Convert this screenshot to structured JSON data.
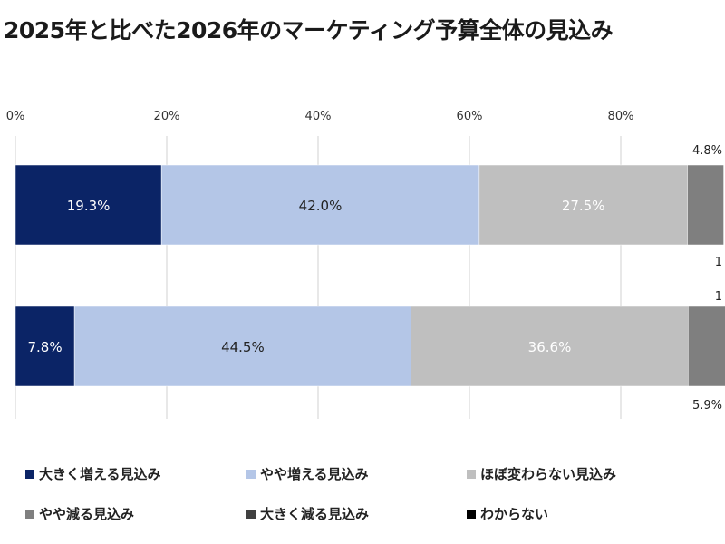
{
  "chart_data": {
    "type": "bar",
    "orientation": "horizontal",
    "stacked": true,
    "title": "2025年と比べた2026年のマーケティング予算全体の見込み",
    "xlabel": "",
    "ylabel": "",
    "xlim": [
      0,
      100
    ],
    "x_ticks": [
      "0%",
      "20%",
      "40%",
      "60%",
      "80%"
    ],
    "x_tick_values": [
      0,
      20,
      40,
      60,
      80
    ],
    "grid": true,
    "legend_position": "bottom",
    "categories": [
      "",
      ""
    ],
    "series": [
      {
        "name": "大きく増える見込み",
        "color": "#0b2466",
        "values": [
          19.3,
          7.8
        ],
        "labels": [
          "19.3%",
          "7.8%"
        ],
        "label_color": "#ffffff"
      },
      {
        "name": "やや増える見込み",
        "color": "#b4c6e7",
        "values": [
          42.0,
          44.5
        ],
        "labels": [
          "42.0%",
          "44.5%"
        ],
        "label_color": "#222222"
      },
      {
        "name": "ほぼ変わらない見込み",
        "color": "#bfbfbf",
        "values": [
          27.5,
          36.6
        ],
        "labels": [
          "27.5%",
          "36.6%"
        ],
        "label_color": "#ffffff"
      },
      {
        "name": "やや減る見込み",
        "color": "#7f7f7f",
        "values": [
          4.8,
          5.9
        ],
        "labels": [
          "4.8%",
          "5.9%"
        ],
        "label_color": "#222222"
      },
      {
        "name": "大きく減る見込み",
        "color": "#404040",
        "values": [
          null,
          null
        ],
        "labels": [
          "1",
          "1"
        ],
        "label_color": "#222222"
      },
      {
        "name": "わからない",
        "color": "#000000",
        "values": [
          null,
          null
        ],
        "labels": [
          "",
          ""
        ],
        "label_color": "#222222"
      }
    ]
  }
}
